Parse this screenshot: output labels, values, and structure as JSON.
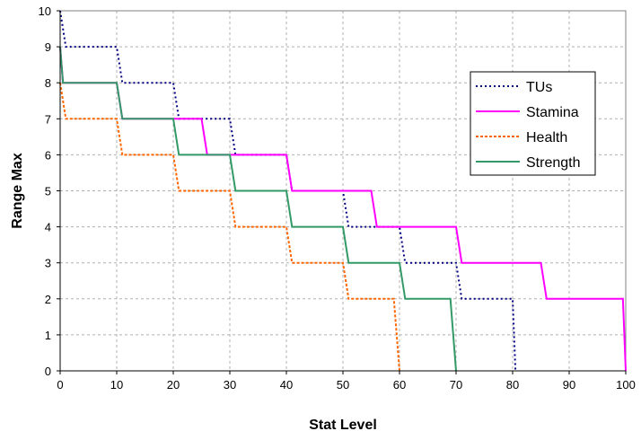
{
  "chart_data": {
    "type": "line",
    "title": "",
    "xlabel": "Stat Level",
    "ylabel": "Range Max",
    "xlim": [
      0,
      100
    ],
    "ylim": [
      0,
      10
    ],
    "x_ticks": [
      "0",
      "10",
      "20",
      "30",
      "40",
      "50",
      "60",
      "70",
      "80",
      "90",
      "100"
    ],
    "y_ticks": [
      "0",
      "1",
      "2",
      "3",
      "4",
      "5",
      "6",
      "7",
      "8",
      "9",
      "10"
    ],
    "grid": true,
    "legend_position": "right",
    "series": [
      {
        "name": "TUs",
        "color": "#000080",
        "dash": "dotted",
        "points": [
          [
            0,
            10
          ],
          [
            1,
            9
          ],
          [
            10,
            9
          ],
          [
            11,
            8
          ],
          [
            20,
            8
          ],
          [
            21,
            7
          ],
          [
            30,
            7
          ],
          [
            31,
            6
          ],
          [
            40,
            6
          ],
          [
            41,
            5
          ],
          [
            50,
            5
          ],
          [
            51,
            4
          ],
          [
            60,
            4
          ],
          [
            61,
            3
          ],
          [
            70,
            3
          ],
          [
            71,
            2
          ],
          [
            80,
            2
          ],
          [
            80.5,
            0
          ]
        ]
      },
      {
        "name": "Stamina",
        "color": "#FF00FF",
        "dash": "solid",
        "points": [
          [
            0,
            9
          ],
          [
            0.5,
            8
          ],
          [
            10,
            8
          ],
          [
            11,
            7
          ],
          [
            25,
            7
          ],
          [
            26,
            6
          ],
          [
            40,
            6
          ],
          [
            41,
            5
          ],
          [
            55,
            5
          ],
          [
            56,
            4
          ],
          [
            70,
            4
          ],
          [
            71,
            3
          ],
          [
            85,
            3
          ],
          [
            86,
            2
          ],
          [
            99.5,
            2
          ],
          [
            100,
            0
          ]
        ]
      },
      {
        "name": "Health",
        "color": "#FF6600",
        "dash": "dashed",
        "points": [
          [
            0,
            8
          ],
          [
            1,
            7
          ],
          [
            10,
            7
          ],
          [
            11,
            6
          ],
          [
            20,
            6
          ],
          [
            21,
            5
          ],
          [
            30,
            5
          ],
          [
            31,
            4
          ],
          [
            40,
            4
          ],
          [
            41,
            3
          ],
          [
            50,
            3
          ],
          [
            51,
            2
          ],
          [
            59,
            2
          ],
          [
            60,
            0
          ]
        ]
      },
      {
        "name": "Strength",
        "color": "#339966",
        "dash": "solid",
        "points": [
          [
            0,
            9
          ],
          [
            0.5,
            8
          ],
          [
            10,
            8
          ],
          [
            11,
            7
          ],
          [
            20,
            7
          ],
          [
            21,
            6
          ],
          [
            30,
            6
          ],
          [
            31,
            5
          ],
          [
            40,
            5
          ],
          [
            41,
            4
          ],
          [
            50,
            4
          ],
          [
            51,
            3
          ],
          [
            60,
            3
          ],
          [
            61,
            2
          ],
          [
            69,
            2
          ],
          [
            70,
            0
          ]
        ]
      }
    ]
  }
}
